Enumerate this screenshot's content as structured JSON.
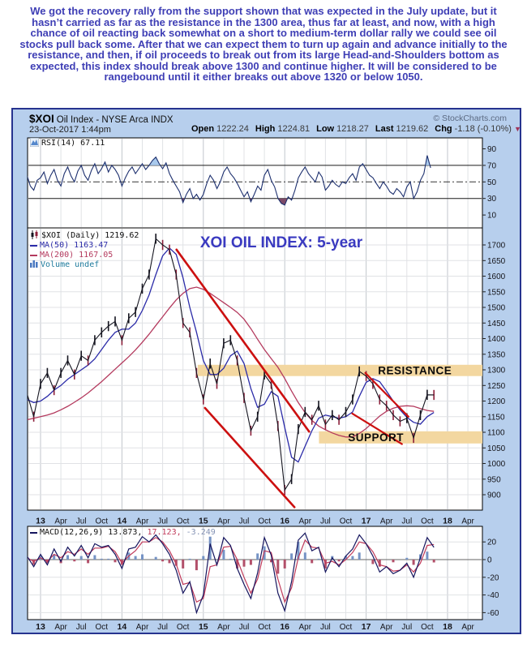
{
  "commentary": {
    "text": "We got the recovery rally from the support shown that was expected in the July update, but it hasn’t carried as far as the resistance in the 1300 area, thus far at least, and now, with a high chance of oil reacting back somewhat on a short to medium-term dollar rally we could see oil stocks pull back some. After that we can expect them to turn up again and advance initially to the resistance, and then, if oil proceeds to break out from its large Head-and-Shoulders bottom as expected, this index should break above 1300 and continue higher. It will be considered to be rangebound until it either breaks out above 1320 or below 1050."
  },
  "chart": {
    "header": {
      "symbol": "$XOI",
      "description": "Oil Index - NYSE Arca INDX",
      "copyright": "© StockCharts.com",
      "timestamp": "23-Oct-2017 1:44pm",
      "quote": [
        {
          "label": "Open",
          "value": "1222.24"
        },
        {
          "label": "High",
          "value": "1224.81"
        },
        {
          "label": "Low",
          "value": "1218.27"
        },
        {
          "label": "Last",
          "value": "1219.62"
        },
        {
          "label": "Chg",
          "value": "-1.18 (-0.10%)"
        }
      ]
    },
    "rsi_legend": "RSI(14) 67.11",
    "legend": {
      "price": "$XOI (Daily) 1219.62",
      "ma50": "MA(50) 1163.47",
      "ma200": "MA(200) 1167.05",
      "volume": "Volume undef"
    },
    "macd_legend": {
      "part1": "MACD(12,26,9) 13.873,",
      "part2": "17.123,",
      "part3": "-3.249"
    },
    "colors": {
      "frame_bg": "#b7cfed",
      "frame_border": "#26338f",
      "panel_bg": "#ffffff",
      "commentary": "#3e3eb5",
      "title": "#3a3ac0",
      "price": "#14141f",
      "candle_up": "#14141f",
      "candle_down": "#8c1f3a",
      "ma50": "#2b2ba8",
      "ma200": "#b43a5e",
      "trend": "#cc1010",
      "band": "#f3d7a0",
      "rsi": "#1c2f6e",
      "rsi_fill_high": "#a9c9ec",
      "rsi_fill_low": "#7c4a68",
      "macd": "#15155e",
      "signal": "#c03a5a",
      "hist_pos": "#7593c5",
      "hist_neg": "#b2506a",
      "grid": "#e0e2e5",
      "grid_year": "#c2c6cc",
      "axis_text": "#15151a",
      "chg_arrow": "#a03358"
    }
  },
  "chart_data": {
    "type": "line",
    "title": "XOI OIL INDEX: 5-year",
    "x_axis": {
      "labels": [
        "13",
        "Apr",
        "Jul",
        "Oct",
        "14",
        "Apr",
        "Jul",
        "Oct",
        "15",
        "Apr",
        "Jul",
        "Oct",
        "16",
        "Apr",
        "Jul",
        "Oct",
        "17",
        "Apr",
        "Jul",
        "Oct",
        "18",
        "Apr"
      ],
      "start_year": 2013,
      "quarter_step": 0.25
    },
    "price": {
      "ylim": [
        900,
        1700
      ],
      "yticks": [
        1700,
        1650,
        1600,
        1550,
        1500,
        1450,
        1400,
        1350,
        1300,
        1250,
        1200,
        1150,
        1100,
        1050,
        1000,
        950,
        900
      ],
      "t0": -0.16667,
      "step": 0.08333,
      "candle_half_range": 16,
      "values": [
        1225,
        1150,
        1255,
        1290,
        1235,
        1290,
        1330,
        1285,
        1345,
        1330,
        1395,
        1420,
        1440,
        1455,
        1395,
        1465,
        1485,
        1560,
        1605,
        1720,
        1700,
        1685,
        1605,
        1450,
        1420,
        1290,
        1205,
        1320,
        1255,
        1385,
        1395,
        1330,
        1210,
        1105,
        1150,
        1285,
        1255,
        1120,
        915,
        950,
        1110,
        1165,
        1140,
        1185,
        1125,
        1155,
        1140,
        1165,
        1205,
        1295,
        1280,
        1255,
        1205,
        1185,
        1155,
        1135,
        1145,
        1082,
        1155,
        1220,
        1219.62
      ]
    },
    "ma50": {
      "values": [
        1205,
        1195,
        1200,
        1215,
        1235,
        1250,
        1270,
        1285,
        1300,
        1315,
        1335,
        1365,
        1395,
        1420,
        1430,
        1430,
        1450,
        1490,
        1540,
        1605,
        1665,
        1690,
        1670,
        1595,
        1500,
        1420,
        1330,
        1285,
        1285,
        1305,
        1345,
        1360,
        1320,
        1240,
        1180,
        1190,
        1230,
        1215,
        1115,
        1020,
        1005,
        1055,
        1105,
        1145,
        1155,
        1150,
        1145,
        1150,
        1165,
        1215,
        1260,
        1272,
        1262,
        1232,
        1200,
        1172,
        1148,
        1132,
        1126,
        1150,
        1163.47
      ]
    },
    "ma200": {
      "values": [
        1140,
        1145,
        1150,
        1155,
        1162,
        1172,
        1183,
        1196,
        1210,
        1226,
        1244,
        1262,
        1282,
        1302,
        1322,
        1342,
        1364,
        1388,
        1414,
        1442,
        1470,
        1498,
        1524,
        1545,
        1560,
        1565,
        1558,
        1545,
        1530,
        1515,
        1500,
        1484,
        1462,
        1432,
        1398,
        1365,
        1336,
        1308,
        1272,
        1232,
        1195,
        1163,
        1138,
        1120,
        1108,
        1098,
        1090,
        1085,
        1085,
        1096,
        1112,
        1132,
        1152,
        1167,
        1177,
        1183,
        1185,
        1183,
        1176,
        1170,
        1167.05
      ]
    },
    "rsi": {
      "yticks": [
        90,
        70,
        50,
        30,
        10
      ],
      "overbought": 70,
      "oversold": 30,
      "midline": 50,
      "t0": -0.16667,
      "step": 0.04167,
      "current": 67.11,
      "values": [
        58,
        45,
        40,
        52,
        55,
        62,
        48,
        58,
        65,
        52,
        45,
        60,
        68,
        57,
        50,
        63,
        70,
        58,
        52,
        64,
        72,
        60,
        66,
        74,
        62,
        70,
        65,
        58,
        45,
        55,
        63,
        68,
        60,
        66,
        72,
        65,
        70,
        76,
        80,
        72,
        66,
        73,
        60,
        52,
        45,
        38,
        25,
        35,
        42,
        30,
        35,
        28,
        35,
        48,
        58,
        52,
        42,
        50,
        62,
        68,
        60,
        55,
        48,
        40,
        32,
        38,
        26,
        35,
        45,
        40,
        58,
        65,
        52,
        44,
        30,
        24,
        22,
        32,
        28,
        40,
        55,
        62,
        68,
        60,
        55,
        50,
        62,
        56,
        40,
        45,
        52,
        47,
        44,
        50,
        48,
        55,
        60,
        52,
        68,
        72,
        65,
        58,
        55,
        48,
        42,
        50,
        45,
        38,
        35,
        42,
        38,
        32,
        44,
        50,
        30,
        38,
        52,
        60,
        82,
        67
      ]
    },
    "macd": {
      "yticks": [
        20,
        0,
        -20,
        -40,
        -60
      ],
      "t0": -0.16667,
      "step": 0.08333,
      "macd_current": 13.873,
      "signal_current": 17.123,
      "hist_current": -3.249,
      "macd": [
        4,
        -8,
        6,
        -6,
        12,
        -2,
        14,
        4,
        16,
        2,
        18,
        14,
        16,
        6,
        -10,
        12,
        14,
        26,
        20,
        28,
        18,
        6,
        -12,
        -38,
        -25,
        -60,
        -40,
        18,
        -6,
        25,
        16,
        -10,
        -28,
        -44,
        -15,
        25,
        5,
        -38,
        -58,
        -25,
        22,
        30,
        10,
        14,
        -14,
        2,
        -8,
        4,
        12,
        28,
        18,
        4,
        -14,
        -8,
        -16,
        -12,
        -4,
        -20,
        2,
        25,
        13.87
      ],
      "signal": [
        2,
        -2,
        2,
        -2,
        6,
        2,
        9,
        6,
        12,
        6,
        13,
        13,
        15,
        9,
        -4,
        4,
        10,
        20,
        20,
        25,
        20,
        10,
        -5,
        -28,
        -26,
        -48,
        -44,
        -8,
        -6,
        14,
        15,
        0,
        -20,
        -38,
        -22,
        10,
        8,
        -22,
        -48,
        -32,
        2,
        22,
        14,
        13,
        -4,
        -2,
        -6,
        0,
        8,
        20,
        18,
        9,
        -6,
        -8,
        -13,
        -12,
        -6,
        -14,
        -4,
        16,
        17.12
      ]
    },
    "annotations": {
      "bands": [
        {
          "from": 1280,
          "to": 1316,
          "t_start": 1.93,
          "label": "RESISTANCE",
          "label_t": 4.6,
          "label_price": 1286
        },
        {
          "from": 1064,
          "to": 1103,
          "t_start": 3.42,
          "label": "SUPPORT",
          "label_t": 4.12,
          "label_price": 1072
        }
      ],
      "trendlines": [
        {
          "t1": 1.67,
          "p1": 1685,
          "t2": 3.3,
          "p2": 1102,
          "width": 2.6
        },
        {
          "t1": 2.02,
          "p1": 1178,
          "t2": 3.12,
          "p2": 860,
          "width": 2.6
        },
        {
          "t1": 3.99,
          "p1": 1290,
          "t2": 4.52,
          "p2": 1150,
          "width": 2.2
        },
        {
          "t1": 3.83,
          "p1": 1160,
          "t2": 4.44,
          "p2": 1062,
          "width": 2.2
        }
      ]
    }
  }
}
